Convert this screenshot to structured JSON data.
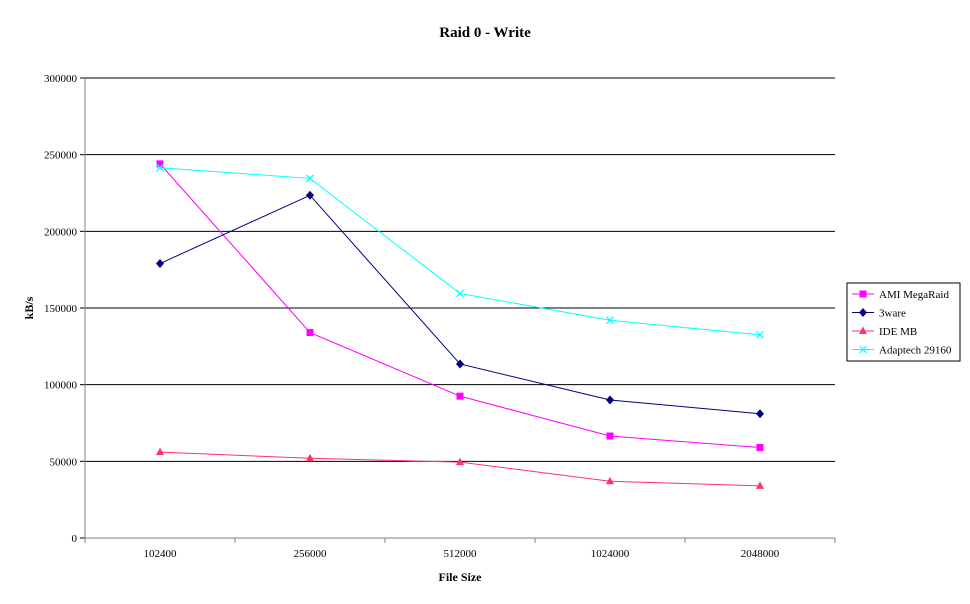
{
  "chart_data": {
    "type": "line",
    "title": "Raid 0 - Write",
    "xlabel": "File Size",
    "ylabel": "kB/s",
    "categories": [
      "102400",
      "256000",
      "512000",
      "1024000",
      "2048000"
    ],
    "ylim": [
      0,
      300000
    ],
    "yticks": [
      "0",
      "50000",
      "100000",
      "150000",
      "200000",
      "250000",
      "300000"
    ],
    "grid": true,
    "legend_position": "right",
    "series": [
      {
        "name": "AMI MegaRaid",
        "color": "#ff00ff",
        "marker": "square",
        "values": [
          244000,
          134000,
          92500,
          66500,
          59000
        ]
      },
      {
        "name": "3ware",
        "color": "#000080",
        "marker": "diamond",
        "values": [
          179000,
          223500,
          113500,
          90000,
          81000
        ]
      },
      {
        "name": "IDE MB",
        "color": "#ff3366",
        "marker": "triangle",
        "values": [
          56000,
          52000,
          49500,
          37000,
          34000
        ]
      },
      {
        "name": "Adaptech 29160",
        "color": "#00ffff",
        "marker": "x",
        "values": [
          241500,
          234500,
          159500,
          142000,
          132500
        ]
      }
    ]
  }
}
